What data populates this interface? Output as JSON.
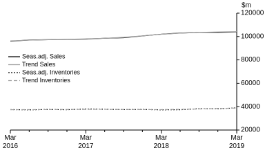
{
  "chart_data": {
    "type": "line",
    "y_label": "$m",
    "categories": [
      "Mar 2016",
      null,
      null,
      null,
      "Mar 2017",
      null,
      null,
      null,
      "Mar 2018",
      null,
      null,
      null,
      "Mar 2019"
    ],
    "series": [
      {
        "name": "Seas.adj. Sales",
        "color": "#000000",
        "dash": "solid",
        "values": [
          96000,
          97000,
          97300,
          97500,
          97800,
          98500,
          99000,
          100500,
          102000,
          103000,
          103500,
          103500,
          104000
        ]
      },
      {
        "name": "Trend Sales",
        "color": "#a0a0a0",
        "dash": "solid",
        "values": [
          96300,
          96900,
          97300,
          97600,
          98000,
          98500,
          99300,
          100600,
          101900,
          102900,
          103500,
          103900,
          104200
        ]
      },
      {
        "name": "Seas.adj. Inventories",
        "color": "#000000",
        "dash": "dotted",
        "values": [
          37500,
          37300,
          37600,
          37400,
          38000,
          37800,
          37500,
          37600,
          37300,
          37400,
          38200,
          38100,
          39000
        ]
      },
      {
        "name": "Trend Inventories",
        "color": "#a0a0a0",
        "dash": "dashed",
        "values": [
          37400,
          37500,
          37500,
          37600,
          37700,
          37700,
          37600,
          37500,
          37500,
          37700,
          38000,
          38400,
          38800
        ]
      }
    ],
    "ylim": [
      20000,
      120000
    ],
    "yticks": [
      20000,
      40000,
      60000,
      80000,
      100000,
      120000
    ],
    "legend": "left"
  }
}
